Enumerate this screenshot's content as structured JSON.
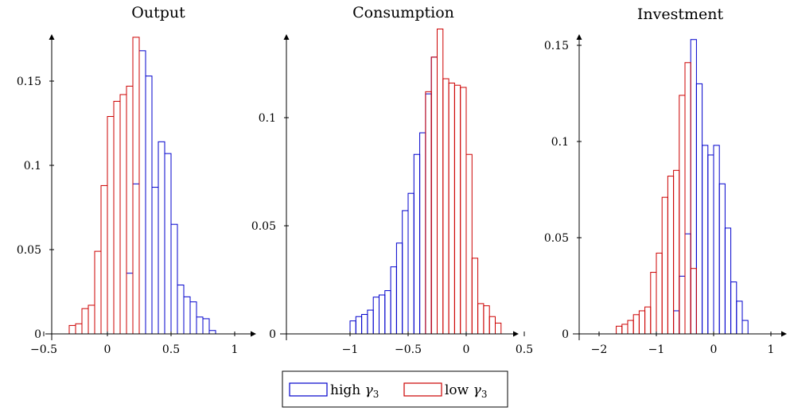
{
  "legend": {
    "entries": [
      {
        "label": "high",
        "symbol": "γ",
        "sub": "3",
        "color": "#0000cc"
      },
      {
        "label": "low",
        "symbol": "γ",
        "sub": "3",
        "color": "#cc0000"
      }
    ]
  },
  "chart_data": [
    {
      "type": "bar",
      "title": "Output",
      "xlabel": "",
      "ylabel": "",
      "xlim": [
        -0.7,
        1.2
      ],
      "ylim": [
        0,
        0.18
      ],
      "xticks": [
        -0.5,
        0,
        0.5,
        1
      ],
      "xtick_labels": [
        "−0.5",
        "0",
        "0.5",
        "1"
      ],
      "yticks": [
        0,
        0.05,
        0.1,
        0.15
      ],
      "ytick_labels": [
        "0",
        "0.05",
        "0.1",
        "0.15"
      ],
      "bin_width": 0.05,
      "series": [
        {
          "name": "high γ3",
          "color": "#0000cc",
          "bin_starts": [
            0.15,
            0.2,
            0.25,
            0.3,
            0.35,
            0.4,
            0.45,
            0.5,
            0.55,
            0.6,
            0.65,
            0.7,
            0.75,
            0.8
          ],
          "values": [
            0.036,
            0.089,
            0.168,
            0.153,
            0.087,
            0.114,
            0.107,
            0.065,
            0.029,
            0.022,
            0.019,
            0.01,
            0.009,
            0.002
          ]
        },
        {
          "name": "low γ3",
          "color": "#cc0000",
          "bin_starts": [
            -0.3,
            -0.25,
            -0.2,
            -0.15,
            -0.1,
            -0.05,
            0.0,
            0.05,
            0.1,
            0.15,
            0.2
          ],
          "values": [
            0.005,
            0.006,
            0.015,
            0.017,
            0.049,
            0.088,
            0.129,
            0.138,
            0.142,
            0.147,
            0.176
          ]
        }
      ]
    },
    {
      "type": "bar",
      "title": "Consumption",
      "xlabel": "",
      "ylabel": "",
      "xlim": [
        -1.3,
        0.6
      ],
      "ylim": [
        0,
        0.14
      ],
      "xticks": [
        -1,
        -0.5,
        0,
        0.5
      ],
      "xtick_labels": [
        "−1",
        "−0.5",
        "0",
        "0.5"
      ],
      "yticks": [
        0,
        0.05,
        0.1
      ],
      "ytick_labels": [
        "0",
        "0.05",
        "0.1"
      ],
      "bin_width": 0.05,
      "series": [
        {
          "name": "high γ3",
          "color": "#0000cc",
          "bin_starts": [
            -1.0,
            -0.95,
            -0.9,
            -0.85,
            -0.8,
            -0.75,
            -0.7,
            -0.65,
            -0.6,
            -0.55,
            -0.5,
            -0.45,
            -0.4,
            -0.35,
            -0.3
          ],
          "values": [
            0.006,
            0.008,
            0.009,
            0.011,
            0.017,
            0.018,
            0.02,
            0.031,
            0.042,
            0.057,
            0.065,
            0.083,
            0.093,
            0.111,
            0.128
          ]
        },
        {
          "name": "low γ3",
          "color": "#cc0000",
          "bin_starts": [
            -0.35,
            -0.3,
            -0.25,
            -0.2,
            -0.15,
            -0.1,
            -0.05,
            0.0,
            0.05,
            0.1,
            0.15,
            0.2,
            0.25
          ],
          "values": [
            0.112,
            0.128,
            0.141,
            0.118,
            0.116,
            0.115,
            0.114,
            0.083,
            0.035,
            0.014,
            0.013,
            0.008,
            0.005
          ]
        }
      ]
    },
    {
      "type": "bar",
      "title": "Investment",
      "xlabel": "",
      "ylabel": "",
      "xlim": [
        -2.2,
        1.0
      ],
      "ylim": [
        0,
        0.155
      ],
      "xticks": [
        -2,
        -1,
        0,
        1
      ],
      "xtick_labels": [
        "−2",
        "−1",
        "0",
        "1"
      ],
      "yticks": [
        0,
        0.05,
        0.1,
        0.15
      ],
      "ytick_labels": [
        "0",
        "0.05",
        "0.1",
        "0.15"
      ],
      "bin_width": 0.1,
      "series": [
        {
          "name": "high γ3",
          "color": "#0000cc",
          "bin_starts": [
            -0.7,
            -0.6,
            -0.5,
            -0.4,
            -0.3,
            -0.2,
            -0.1,
            0.0,
            0.1,
            0.2,
            0.3,
            0.4,
            0.5
          ],
          "values": [
            0.012,
            0.03,
            0.052,
            0.153,
            0.13,
            0.098,
            0.093,
            0.098,
            0.078,
            0.055,
            0.027,
            0.017,
            0.007
          ]
        },
        {
          "name": "low γ3",
          "color": "#cc0000",
          "bin_starts": [
            -1.7,
            -1.6,
            -1.5,
            -1.4,
            -1.3,
            -1.2,
            -1.1,
            -1.0,
            -0.9,
            -0.8,
            -0.7,
            -0.6,
            -0.5,
            -0.4
          ],
          "values": [
            0.004,
            0.005,
            0.007,
            0.01,
            0.012,
            0.014,
            0.032,
            0.042,
            0.071,
            0.082,
            0.085,
            0.124,
            0.141,
            0.034
          ]
        }
      ]
    }
  ]
}
